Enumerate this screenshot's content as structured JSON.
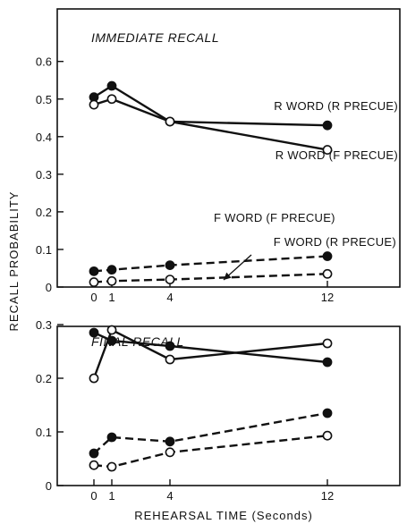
{
  "chart_data": {
    "type": "line",
    "xlabel": "REHEARSAL TIME (Seconds)",
    "ylabel": "RECALL PROBABILITY",
    "x": [
      0,
      1,
      4,
      12
    ],
    "xticks": [
      0,
      1,
      4,
      12
    ],
    "panels": [
      {
        "title": "IMMEDIATE RECALL",
        "ylim": [
          0,
          0.65
        ],
        "yticks": [
          0,
          0.1,
          0.2,
          0.3,
          0.4,
          0.5,
          0.6
        ],
        "ytick_labels": [
          "0",
          "0.1",
          "0.2",
          "0.3",
          "0.4",
          "0.5",
          "0.6"
        ],
        "series": [
          {
            "name": "R WORD (R PRECUE)",
            "values": [
              0.505,
              0.535,
              0.44,
              0.43
            ],
            "line": "solid",
            "marker": "filled"
          },
          {
            "name": "R WORD (F PRECUE)",
            "values": [
              0.485,
              0.5,
              0.44,
              0.365
            ],
            "line": "solid",
            "marker": "open"
          },
          {
            "name": "F WORD (F PRECUE)",
            "values": [
              0.042,
              0.046,
              0.058,
              0.082
            ],
            "line": "dashed",
            "marker": "filled"
          },
          {
            "name": "F WORD (R PRECUE)",
            "values": [
              0.013,
              0.016,
              0.02,
              0.035
            ],
            "line": "dashed",
            "marker": "open"
          }
        ]
      },
      {
        "title": "FINAL RECALL",
        "ylim": [
          0,
          0.36
        ],
        "yticks": [
          0,
          0.1,
          0.2,
          0.3
        ],
        "ytick_labels": [
          "0",
          "0.1",
          "0.2",
          "0.3"
        ],
        "series": [
          {
            "values": [
              0.285,
              0.27,
              0.26,
              0.23
            ],
            "line": "solid",
            "marker": "filled"
          },
          {
            "values": [
              0.2,
              0.29,
              0.235,
              0.265
            ],
            "line": "solid",
            "marker": "open"
          },
          {
            "values": [
              0.06,
              0.09,
              0.082,
              0.135
            ],
            "line": "dashed",
            "marker": "filled"
          },
          {
            "values": [
              0.038,
              0.035,
              0.062,
              0.093
            ],
            "line": "dashed",
            "marker": "open"
          }
        ]
      }
    ],
    "grid": false,
    "legend": "inline labels"
  }
}
